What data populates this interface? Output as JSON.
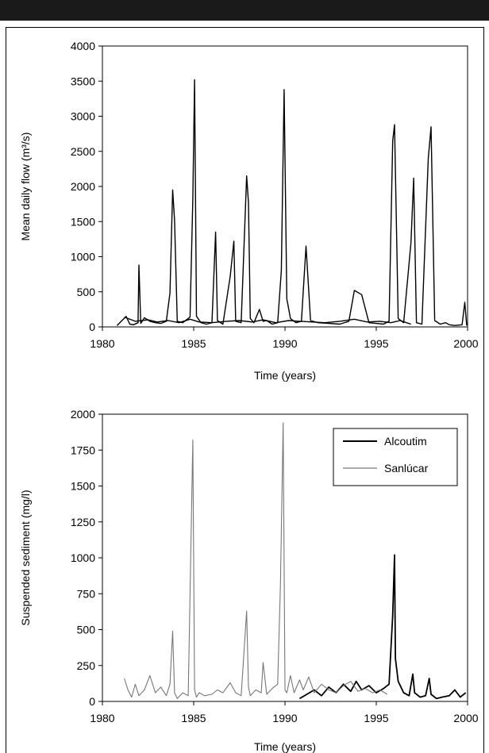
{
  "chart_data": [
    {
      "type": "line",
      "xlabel": "Time (years)",
      "ylabel": "Mean daily flow (m³/s)",
      "ylim": [
        0,
        4000
      ],
      "xlim": [
        1980,
        2000
      ],
      "yticks": [
        0,
        500,
        1000,
        1500,
        2000,
        2500,
        3000,
        3500,
        4000
      ],
      "xticks": [
        1980,
        1985,
        1990,
        1995,
        2000
      ],
      "grid": false,
      "series": [
        {
          "color": "#000000",
          "x": [
            1980.8,
            1981.3,
            1981.5,
            1981.7,
            1981.95,
            1982.0,
            1982.1,
            1982.3,
            1982.6,
            1982.9,
            1983.2,
            1983.5,
            1983.7,
            1983.85,
            1983.95,
            1984.1,
            1984.4,
            1984.8,
            1984.95,
            1985.05,
            1985.15,
            1985.4,
            1985.7,
            1986.0,
            1986.2,
            1986.3,
            1986.6,
            1987.0,
            1987.2,
            1987.3,
            1987.6,
            1987.9,
            1988.0,
            1988.1,
            1988.3,
            1988.6,
            1988.8,
            1989.0,
            1989.3,
            1989.6,
            1989.8,
            1989.95,
            1990.1,
            1990.3,
            1990.6,
            1990.9,
            1991.15,
            1991.4,
            1991.8,
            1992.4,
            1993.0,
            1993.5,
            1993.8,
            1994.2,
            1994.6,
            1995.0,
            1995.4,
            1995.7,
            1995.9,
            1996.0,
            1996.2,
            1996.5,
            1996.9,
            1997.05,
            1997.2,
            1997.5,
            1997.85,
            1998.0,
            1998.2,
            1998.5,
            1998.8,
            1999.0,
            1999.3,
            1999.7,
            1999.85,
            1999.95
          ],
          "y": [
            20,
            150,
            40,
            30,
            60,
            880,
            50,
            130,
            80,
            60,
            50,
            80,
            480,
            1950,
            1520,
            80,
            60,
            140,
            1820,
            3520,
            150,
            60,
            40,
            60,
            1350,
            90,
            40,
            720,
            1220,
            80,
            60,
            2150,
            1770,
            120,
            60,
            250,
            80,
            90,
            40,
            60,
            800,
            3380,
            400,
            120,
            60,
            80,
            1150,
            90,
            60,
            50,
            40,
            80,
            520,
            460,
            60,
            50,
            40,
            80,
            2650,
            2880,
            120,
            60,
            1200,
            2120,
            60,
            40,
            2400,
            2850,
            90,
            40,
            60,
            30,
            20,
            30,
            350,
            20
          ]
        },
        {
          "color": "#000000",
          "x": [
            1981.2,
            1981.8,
            1982.5,
            1983.0,
            1983.6,
            1984.2,
            1984.8,
            1985.3,
            1986.0,
            1986.8,
            1987.5,
            1988.2,
            1988.8,
            1989.5,
            1990.2,
            1990.8,
            1991.5,
            1992.2,
            1993.0,
            1993.8,
            1994.5,
            1995.2,
            1995.8,
            1996.3,
            1996.9
          ],
          "y": [
            140,
            80,
            100,
            70,
            90,
            60,
            110,
            70,
            60,
            80,
            90,
            70,
            100,
            60,
            90,
            80,
            70,
            60,
            80,
            110,
            70,
            80,
            60,
            90,
            40
          ]
        }
      ]
    },
    {
      "type": "line",
      "xlabel": "Time (years)",
      "ylabel": "Suspended sediment (mg/l)",
      "ylim": [
        0,
        2000
      ],
      "xlim": [
        1980,
        2000
      ],
      "yticks": [
        0,
        250,
        500,
        750,
        1000,
        1250,
        1500,
        1750,
        2000
      ],
      "xticks": [
        1980,
        1985,
        1990,
        1995,
        2000
      ],
      "grid": false,
      "legend": "top-right",
      "series": [
        {
          "name": "Alcoutim",
          "color": "#000000",
          "x": [
            1990.8,
            1991.2,
            1991.6,
            1992.0,
            1992.4,
            1992.8,
            1993.2,
            1993.6,
            1993.9,
            1994.2,
            1994.6,
            1995.0,
            1995.4,
            1995.7,
            1995.9,
            1996.0,
            1996.05,
            1996.2,
            1996.5,
            1996.8,
            1997.0,
            1997.1,
            1997.4,
            1997.7,
            1997.9,
            1998.0,
            1998.3,
            1998.6,
            1999.0,
            1999.3,
            1999.6,
            1999.9
          ],
          "y": [
            20,
            50,
            80,
            40,
            100,
            60,
            120,
            70,
            140,
            80,
            110,
            60,
            90,
            120,
            600,
            1020,
            300,
            140,
            60,
            40,
            190,
            60,
            30,
            40,
            160,
            50,
            20,
            30,
            40,
            80,
            30,
            60
          ]
        },
        {
          "name": "Sanlúcar",
          "color": "#777777",
          "x": [
            1981.2,
            1981.4,
            1981.6,
            1981.8,
            1982.0,
            1982.3,
            1982.6,
            1982.9,
            1983.2,
            1983.5,
            1983.7,
            1983.85,
            1983.95,
            1984.1,
            1984.4,
            1984.7,
            1984.95,
            1985.05,
            1985.15,
            1985.3,
            1985.6,
            1986.0,
            1986.3,
            1986.6,
            1987.0,
            1987.3,
            1987.6,
            1987.9,
            1988.0,
            1988.1,
            1988.4,
            1988.7,
            1988.8,
            1989.0,
            1989.3,
            1989.6,
            1989.75,
            1989.9,
            1990.0,
            1990.1,
            1990.3,
            1990.5,
            1990.8,
            1991.0,
            1991.3,
            1991.6,
            1992.0,
            1992.4,
            1992.8,
            1993.2,
            1993.6,
            1994.0,
            1994.4,
            1994.8,
            1995.2,
            1995.6
          ],
          "y": [
            160,
            80,
            30,
            120,
            40,
            80,
            180,
            60,
            100,
            40,
            120,
            490,
            60,
            20,
            60,
            40,
            1820,
            80,
            30,
            60,
            40,
            50,
            80,
            60,
            130,
            60,
            40,
            630,
            100,
            40,
            80,
            60,
            270,
            50,
            90,
            120,
            820,
            1940,
            80,
            60,
            180,
            60,
            150,
            80,
            170,
            60,
            120,
            80,
            60,
            110,
            140,
            70,
            90,
            60,
            80,
            50
          ]
        }
      ]
    }
  ]
}
